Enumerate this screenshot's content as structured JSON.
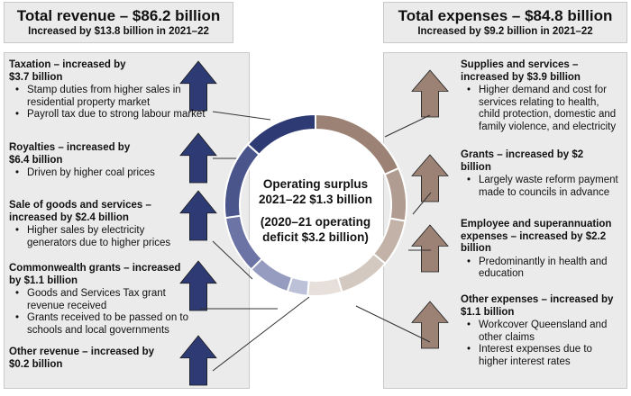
{
  "revenue": {
    "title": "Total revenue – $86.2 billion",
    "subtitle": "Increased by $13.8 billion in 2021–22",
    "items": [
      {
        "title": "Taxation – increased by $3.7 billion",
        "bullets": [
          "Stamp duties from higher sales in residential property market",
          "Payroll tax due to strong labour market"
        ]
      },
      {
        "title": "Royalties – increased by $6.4 billion",
        "bullets": [
          "Driven by higher coal prices"
        ]
      },
      {
        "title": "Sale of goods and services – increased by $2.4 billion",
        "bullets": [
          "Higher sales by electricity generators due to higher prices"
        ]
      },
      {
        "title": "Commonwealth grants – increased by $1.1 billion",
        "bullets": [
          "Goods and Services Tax grant revenue received",
          "Grants received to be passed on to schools and local governments"
        ]
      },
      {
        "title": "Other revenue – increased by $0.2 billion",
        "bullets": []
      }
    ]
  },
  "expenses": {
    "title": "Total expenses – $84.8 billion",
    "subtitle": "Increased by $9.2 billion in 2021–22",
    "items": [
      {
        "title": "Supplies and services – increased by $3.9 billion",
        "bullets": [
          "Higher demand and cost for services relating to health, child protection, domestic and family violence, and electricity"
        ]
      },
      {
        "title": "Grants – increased by $2 billion",
        "bullets": [
          "Largely waste reform payment made to councils in advance"
        ]
      },
      {
        "title": "Employee and superannuation expenses – increased by $2.2 billion",
        "bullets": [
          "Predominantly in health and education"
        ]
      },
      {
        "title": "Other expenses – increased by $1.1 billion",
        "bullets": [
          "Workcover Queensland and other claims",
          "Interest expenses due to higher interest rates"
        ]
      }
    ]
  },
  "center": {
    "line1": "Operating surplus",
    "line2": "2021–22 $1.3 billion",
    "line3": "(2020–21 operating",
    "line4": "deficit $3.2 billion)"
  },
  "colors": {
    "revenue_arrow": "#2e3a73",
    "expense_arrow": "#9b8274",
    "panel": "#ebebeb",
    "donut_revenue": [
      "#2e3a73",
      "#4a558c",
      "#6b74a5",
      "#959cc0",
      "#bcc1d8"
    ],
    "donut_expense": [
      "#9b8274",
      "#b09c90",
      "#c2b2a8",
      "#d4c9c1",
      "#e6dfda"
    ]
  },
  "icons": {
    "revenue": "up-arrow-navy",
    "expense": "up-arrow-taupe"
  }
}
